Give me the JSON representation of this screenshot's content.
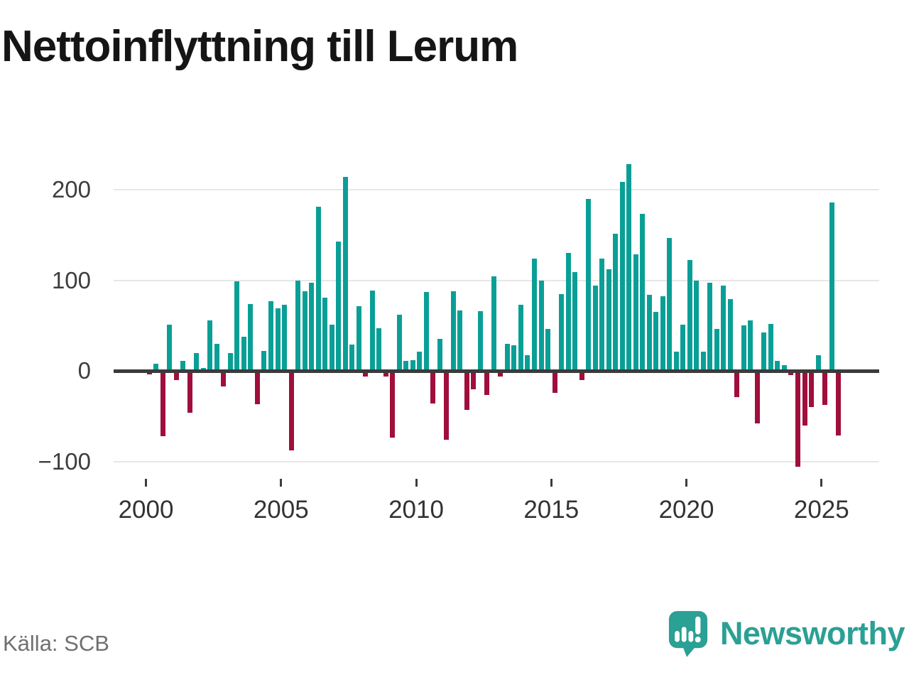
{
  "title": "Nettoinflyttning till Lerum",
  "source": "Källa: SCB",
  "brand": {
    "name": "Newsworthy",
    "color": "#2ba094"
  },
  "colors": {
    "positive_bar": "#0a9f96",
    "negative_bar": "#a00e3c",
    "gridline": "#e7e7e7",
    "zero_line": "#3b3b3b",
    "axis_text": "#3d3d3d",
    "title_text": "#151515",
    "source_text": "#707070"
  },
  "chart_data": {
    "type": "bar",
    "title": "Nettoinflyttning till Lerum",
    "xlabel": "",
    "ylabel": "",
    "x_unit": "quarter",
    "legend": "none",
    "grid": "horizontal",
    "ylim": [
      -120,
      240
    ],
    "y_ticks": [
      200,
      100,
      0,
      -100
    ],
    "y_tick_labels": [
      "200",
      "100",
      "0",
      "−100"
    ],
    "x_tick_years": [
      2000,
      2005,
      2010,
      2015,
      2020,
      2025
    ],
    "x_tick_labels": [
      "2000",
      "2005",
      "2010",
      "2015",
      "2020",
      "2025"
    ],
    "x": [
      "2000 K1",
      "2000 K2",
      "2000 K3",
      "2000 K4",
      "2001 K1",
      "2001 K2",
      "2001 K3",
      "2001 K4",
      "2002 K1",
      "2002 K2",
      "2002 K3",
      "2002 K4",
      "2003 K1",
      "2003 K2",
      "2003 K3",
      "2003 K4",
      "2004 K1",
      "2004 K2",
      "2004 K3",
      "2004 K4",
      "2005 K1",
      "2005 K2",
      "2005 K3",
      "2005 K4",
      "2006 K1",
      "2006 K2",
      "2006 K3",
      "2006 K4",
      "2007 K1",
      "2007 K2",
      "2007 K3",
      "2007 K4",
      "2008 K1",
      "2008 K2",
      "2008 K3",
      "2008 K4",
      "2009 K1",
      "2009 K2",
      "2009 K3",
      "2009 K4",
      "2010 K1",
      "2010 K2",
      "2010 K3",
      "2010 K4",
      "2011 K1",
      "2011 K2",
      "2011 K3",
      "2011 K4",
      "2012 K1",
      "2012 K2",
      "2012 K3",
      "2012 K4",
      "2013 K1",
      "2013 K2",
      "2013 K3",
      "2013 K4",
      "2014 K1",
      "2014 K2",
      "2014 K3",
      "2014 K4",
      "2015 K1",
      "2015 K2",
      "2015 K3",
      "2015 K4",
      "2016 K1",
      "2016 K2",
      "2016 K3",
      "2016 K4",
      "2017 K1",
      "2017 K2",
      "2017 K3",
      "2017 K4",
      "2018 K1",
      "2018 K2",
      "2018 K3",
      "2018 K4",
      "2019 K1",
      "2019 K2",
      "2019 K3",
      "2019 K4",
      "2020 K1",
      "2020 K2",
      "2020 K3",
      "2020 K4",
      "2021 K1",
      "2021 K2",
      "2021 K3",
      "2021 K4",
      "2022 K1",
      "2022 K2",
      "2022 K3",
      "2022 K4",
      "2023 K1",
      "2023 K2",
      "2023 K3",
      "2023 K4",
      "2024 K1",
      "2024 K2",
      "2024 K3",
      "2024 K4",
      "2025 K1",
      "2025 K2",
      "2025 K3"
    ],
    "values": [
      -4,
      8,
      -72,
      51,
      -10,
      11,
      -46,
      20,
      3,
      56,
      30,
      -17,
      20,
      99,
      38,
      74,
      -37,
      22,
      77,
      69,
      73,
      -88,
      100,
      88,
      97,
      181,
      81,
      51,
      143,
      214,
      29,
      71,
      -6,
      89,
      47,
      -6,
      -74,
      62,
      11,
      12,
      21,
      87,
      -36,
      35,
      -76,
      88,
      67,
      -43,
      -20,
      66,
      -27,
      104,
      -6,
      30,
      28,
      73,
      17,
      124,
      100,
      46,
      -24,
      85,
      130,
      109,
      -10,
      190,
      94,
      124,
      112,
      151,
      209,
      228,
      129,
      173,
      84,
      65,
      82,
      147,
      21,
      51,
      122,
      100,
      21,
      97,
      46,
      94,
      79,
      -29,
      50,
      56,
      -58,
      42,
      52,
      11,
      6,
      -5,
      -106,
      -60,
      -40,
      17,
      -38,
      186,
      -71
    ]
  }
}
